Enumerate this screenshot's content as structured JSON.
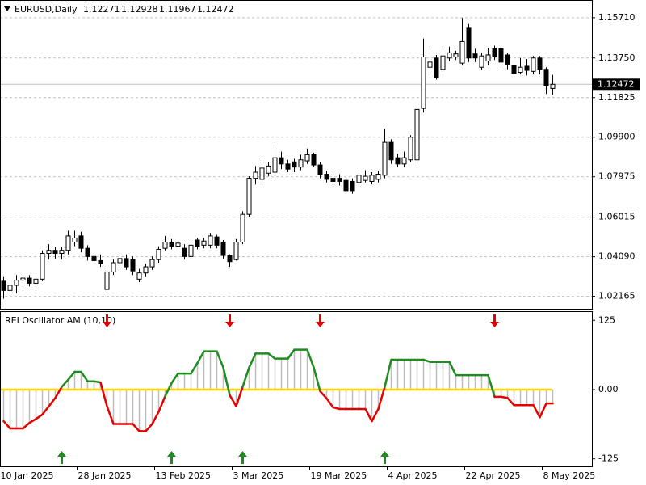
{
  "chart_data": [
    {
      "type": "candlestick",
      "title": "EURUSD,Daily",
      "categories": [
        "10 Jan 2025",
        null,
        null,
        null,
        null,
        null,
        null,
        null,
        null,
        null,
        null,
        null,
        "28 Jan 2025",
        null,
        null,
        null,
        null,
        null,
        null,
        null,
        null,
        null,
        null,
        null,
        "13 Feb 2025",
        null,
        null,
        null,
        null,
        null,
        null,
        null,
        null,
        null,
        null,
        null,
        "3 Mar 2025",
        null,
        null,
        null,
        null,
        null,
        null,
        null,
        null,
        null,
        null,
        null,
        "19 Mar 2025",
        null,
        null,
        null,
        null,
        null,
        null,
        null,
        null,
        null,
        null,
        null,
        "4 Apr 2025",
        null,
        null,
        null,
        null,
        null,
        null,
        null,
        null,
        null,
        null,
        null,
        "22 Apr 2025",
        null,
        null,
        null,
        null,
        null,
        null,
        null,
        null,
        null,
        null,
        null,
        "8 May 2025",
        null
      ],
      "open": [
        1.029,
        1.0245,
        1.027,
        1.0295,
        1.0305,
        1.028,
        1.03,
        1.0425,
        1.044,
        1.0425,
        1.044,
        1.048,
        1.051,
        1.045,
        1.041,
        1.039,
        1.025,
        1.0335,
        1.038,
        1.04,
        1.0395,
        1.03,
        1.033,
        1.036,
        1.0395,
        1.045,
        1.048,
        1.046,
        1.045,
        1.041,
        1.049,
        1.0465,
        1.0465,
        1.0505,
        1.048,
        1.0415,
        1.0395,
        1.048,
        1.0615,
        1.079,
        1.0785,
        1.0815,
        1.082,
        1.089,
        1.086,
        1.087,
        1.0845,
        1.0875,
        1.0905,
        1.0855,
        1.081,
        1.079,
        1.079,
        1.078,
        1.0775,
        1.077,
        1.078,
        1.0775,
        1.0785,
        1.0805,
        1.0965,
        1.089,
        1.086,
        1.088,
        1.088,
        1.113,
        1.133,
        1.1375,
        1.132,
        1.1375,
        1.138,
        1.135,
        1.152,
        1.1395,
        1.133,
        1.136,
        1.142,
        1.142,
        1.139,
        1.134,
        1.1305,
        1.1335,
        1.131,
        1.1375,
        1.132,
        1.12271
      ],
      "high": [
        1.031,
        1.0295,
        1.032,
        1.0325,
        1.032,
        1.033,
        1.044,
        1.047,
        1.0455,
        1.0455,
        1.0535,
        1.0535,
        1.053,
        1.0465,
        1.043,
        1.042,
        1.0345,
        1.0395,
        1.042,
        1.042,
        1.041,
        1.035,
        1.0375,
        1.041,
        1.046,
        1.051,
        1.0495,
        1.049,
        1.047,
        1.0475,
        1.05,
        1.05,
        1.0525,
        1.0515,
        1.049,
        1.042,
        1.0495,
        1.063,
        1.08,
        1.085,
        1.088,
        1.087,
        1.0945,
        1.092,
        1.088,
        1.0885,
        1.0905,
        1.0935,
        1.0915,
        1.087,
        1.0825,
        1.081,
        1.081,
        1.0795,
        1.079,
        1.083,
        1.083,
        1.082,
        1.0825,
        1.103,
        1.098,
        1.091,
        1.092,
        1.1,
        1.1145,
        1.147,
        1.142,
        1.139,
        1.142,
        1.143,
        1.141,
        1.157,
        1.154,
        1.142,
        1.14,
        1.1425,
        1.1435,
        1.143,
        1.14,
        1.1375,
        1.1375,
        1.137,
        1.1385,
        1.1385,
        1.133,
        1.12928
      ],
      "low": [
        1.0205,
        1.023,
        1.023,
        1.027,
        1.0265,
        1.027,
        1.029,
        1.0395,
        1.04,
        1.0395,
        1.042,
        1.046,
        1.043,
        1.039,
        1.0375,
        1.036,
        1.0215,
        1.032,
        1.0365,
        1.0345,
        1.032,
        1.0285,
        1.031,
        1.0345,
        1.038,
        1.044,
        1.0445,
        1.044,
        1.0395,
        1.04,
        1.0445,
        1.045,
        1.045,
        1.045,
        1.04,
        1.036,
        1.039,
        1.047,
        1.06,
        1.076,
        1.077,
        1.08,
        1.08,
        1.0835,
        1.082,
        1.082,
        1.083,
        1.086,
        1.0845,
        1.079,
        1.077,
        1.076,
        1.0755,
        1.072,
        1.0715,
        1.0755,
        1.077,
        1.076,
        1.077,
        1.079,
        1.086,
        1.0845,
        1.0845,
        1.087,
        1.086,
        1.111,
        1.13,
        1.127,
        1.131,
        1.136,
        1.1365,
        1.134,
        1.1355,
        1.1355,
        1.1315,
        1.134,
        1.1365,
        1.134,
        1.132,
        1.1285,
        1.1295,
        1.129,
        1.1295,
        1.1295,
        1.12,
        1.11967
      ],
      "close": [
        1.0245,
        1.027,
        1.0295,
        1.0305,
        1.028,
        1.03,
        1.0425,
        1.044,
        1.0425,
        1.044,
        1.051,
        1.05,
        1.045,
        1.041,
        1.039,
        1.0375,
        1.0335,
        1.038,
        1.04,
        1.036,
        1.034,
        1.033,
        1.036,
        1.0395,
        1.0445,
        1.048,
        1.046,
        1.0475,
        1.041,
        1.0465,
        1.046,
        1.0485,
        1.051,
        1.0465,
        1.0415,
        1.0385,
        1.048,
        1.0615,
        1.079,
        1.082,
        1.084,
        1.085,
        1.089,
        1.086,
        1.0835,
        1.0845,
        1.088,
        1.0905,
        1.0855,
        1.081,
        1.0785,
        1.0775,
        1.0775,
        1.073,
        1.073,
        1.0805,
        1.08,
        1.0805,
        1.081,
        1.0965,
        1.088,
        1.086,
        1.089,
        1.099,
        1.1125,
        1.138,
        1.1355,
        1.128,
        1.1385,
        1.14,
        1.1395,
        1.1455,
        1.1375,
        1.1375,
        1.1385,
        1.139,
        1.138,
        1.1355,
        1.1345,
        1.13,
        1.133,
        1.1315,
        1.1375,
        1.132,
        1.124,
        1.12472
      ],
      "ylim": [
        1.0152,
        1.1657
      ],
      "yticks": [
        {
          "value": 1.1571,
          "label": "1.15710"
        },
        {
          "value": 1.1375,
          "label": "1.13750"
        },
        {
          "value": 1.11825,
          "label": "1.11825"
        },
        {
          "value": 1.099,
          "label": "1.09900"
        },
        {
          "value": 1.07975,
          "label": "1.07975"
        },
        {
          "value": 1.06015,
          "label": "1.06015"
        },
        {
          "value": 1.0409,
          "label": "1.04090"
        },
        {
          "value": 1.02165,
          "label": "1.02165"
        }
      ],
      "grid": true,
      "up_color": "#ffffff",
      "down_color": "#000000"
    },
    {
      "type": "oscillator",
      "title": "REI Oscillator AM (10,10)",
      "values": [
        -57,
        -70,
        -70,
        -70,
        -60,
        -53,
        -45,
        -30,
        -15,
        5,
        18,
        32,
        32,
        15,
        15,
        13,
        -30,
        -62,
        -62,
        -62,
        -62,
        -75,
        -75,
        -62,
        -40,
        -12,
        12,
        29,
        29,
        29,
        48,
        69,
        69,
        69,
        40,
        -10,
        -30,
        5,
        40,
        65,
        65,
        65,
        56,
        56,
        56,
        72,
        72,
        72,
        40,
        -3,
        -16,
        -32,
        -35,
        -35,
        -35,
        -35,
        -35,
        -57,
        -35,
        5,
        54,
        54,
        54,
        54,
        54,
        54,
        50,
        50,
        50,
        50,
        26,
        26,
        26,
        26,
        26,
        26,
        -13,
        -13,
        -15,
        -28,
        -28,
        -28,
        -28,
        -50,
        -25,
        -25
      ],
      "ylim": [
        -140,
        140
      ],
      "yticks": [
        125,
        {
          "value": 0,
          "label": "0.00"
        },
        -125
      ],
      "sell_arrows": [
        16,
        35,
        49,
        76
      ],
      "buy_arrows": [
        9,
        26,
        37,
        59
      ],
      "positive_color": "#1e8c1e",
      "negative_color": "#e60000",
      "histogram_color": "#bdbdbd",
      "zero_color": "#ffd500"
    }
  ]
}
